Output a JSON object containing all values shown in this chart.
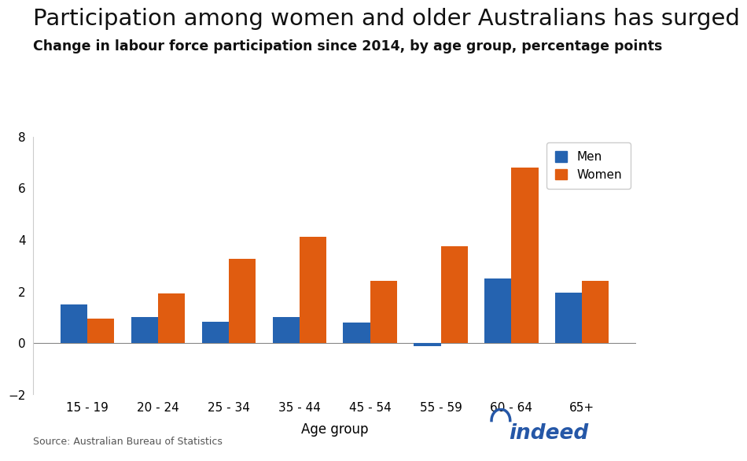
{
  "title": "Participation among women and older Australians has surged",
  "subtitle": "Change in labour force participation since 2014, by age group, percentage points",
  "categories": [
    "15 - 19",
    "20 - 24",
    "25 - 34",
    "35 - 44",
    "45 - 54",
    "55 - 59",
    "60 - 64",
    "65+"
  ],
  "men_values": [
    1.5,
    1.0,
    0.8,
    1.0,
    0.78,
    -0.12,
    2.5,
    1.95
  ],
  "women_values": [
    0.95,
    1.9,
    3.25,
    4.1,
    2.4,
    3.75,
    6.8,
    2.4
  ],
  "men_color": "#2563b0",
  "women_color": "#e05c10",
  "xlabel": "Age group",
  "ylim": [
    -2,
    8
  ],
  "yticks": [
    -2,
    0,
    2,
    4,
    6,
    8
  ],
  "source_text": "Source: Australian Bureau of Statistics",
  "background_color": "#ffffff",
  "title_fontsize": 21,
  "subtitle_fontsize": 12.5,
  "bar_width": 0.38,
  "legend_labels": [
    "Men",
    "Women"
  ],
  "indeed_color": "#2557a7"
}
